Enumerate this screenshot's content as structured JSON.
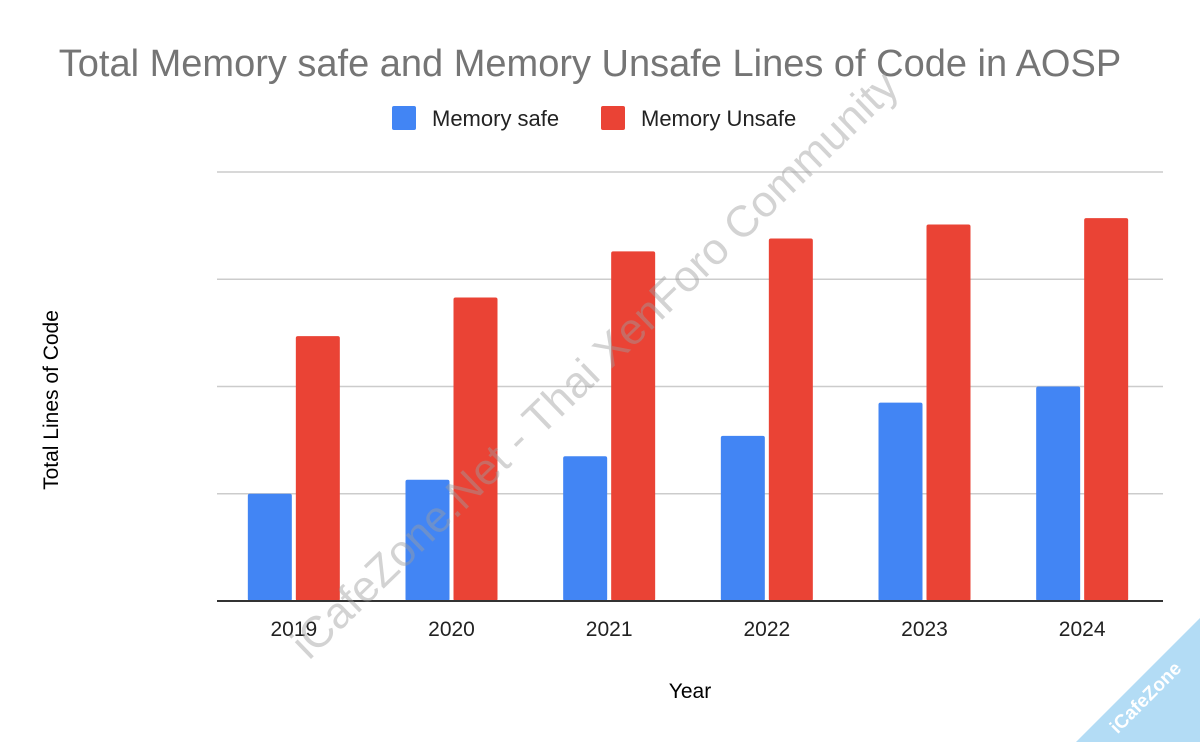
{
  "chart_data": {
    "type": "bar",
    "title": "Total Memory safe and Memory Unsafe Lines of Code in AOSP",
    "xlabel": "Year",
    "ylabel": "Total Lines of Code",
    "categories": [
      "2019",
      "2020",
      "2021",
      "2022",
      "2023",
      "2024"
    ],
    "series": [
      {
        "name": "Memory safe",
        "color": "#4285f4",
        "values": [
          1.0,
          1.13,
          1.35,
          1.54,
          1.85,
          2.0
        ]
      },
      {
        "name": "Memory Unsafe",
        "color": "#ea4335",
        "values": [
          2.47,
          2.83,
          3.26,
          3.38,
          3.51,
          3.57
        ]
      }
    ],
    "ylim": [
      0,
      4
    ],
    "gridlines": [
      1,
      2,
      3,
      4
    ],
    "y_tick_labels_shown": false,
    "grid": true,
    "legend_position": "top-center"
  },
  "watermark": {
    "text": "iCafeZone.Net - Thai XenForo Community",
    "color": "#9e9e9e"
  },
  "corner_badge": {
    "text": "iCafeZone",
    "color": "#b3dcf5"
  }
}
